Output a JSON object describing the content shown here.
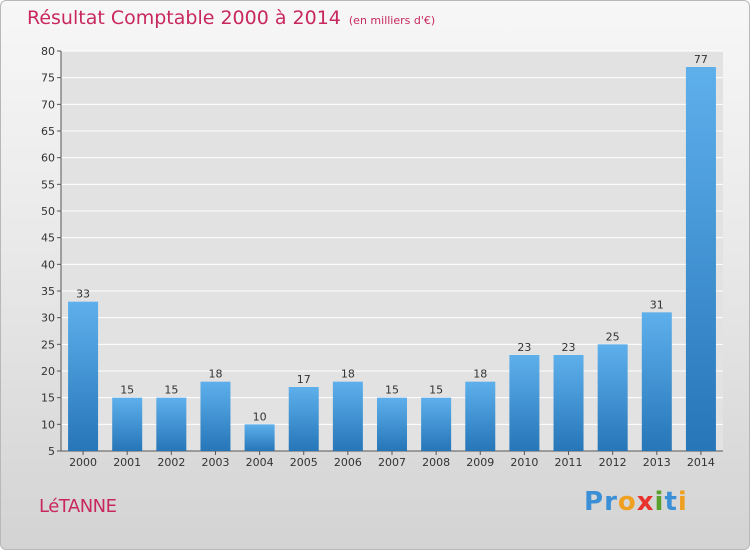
{
  "title": {
    "main": "Résultat Comptable 2000 à 2014",
    "sub": "(en milliers d'€)"
  },
  "place": "LéTANNE",
  "logo": {
    "text": "Proxiti",
    "letters": [
      {
        "ch": "P",
        "color": "#3a8fd6"
      },
      {
        "ch": "r",
        "color": "#3a8fd6"
      },
      {
        "ch": "o",
        "color": "#f0a020"
      },
      {
        "ch": "x",
        "color": "#e8322e"
      },
      {
        "ch": "i",
        "color": "#5aa02c"
      },
      {
        "ch": "t",
        "color": "#3a8fd6"
      },
      {
        "ch": "i",
        "color": "#f0a020"
      }
    ]
  },
  "colors": {
    "bar_light": "#5eb0ec",
    "bar_dark": "#2676b8",
    "grid": "#ffffff",
    "accent": "#c8285e"
  },
  "chart_data": {
    "type": "bar",
    "title": "Résultat Comptable 2000 à 2014 (en milliers d'€)",
    "xlabel": "",
    "ylabel": "",
    "categories": [
      "2000",
      "2001",
      "2002",
      "2003",
      "2004",
      "2005",
      "2006",
      "2007",
      "2008",
      "2009",
      "2010",
      "2011",
      "2012",
      "2013",
      "2014"
    ],
    "values": [
      33,
      15,
      15,
      18,
      10,
      17,
      18,
      15,
      15,
      18,
      23,
      23,
      25,
      31,
      77
    ],
    "ylim": [
      5,
      80
    ],
    "yticks": [
      5,
      10,
      15,
      20,
      25,
      30,
      35,
      40,
      45,
      50,
      55,
      60,
      65,
      70,
      75,
      80
    ],
    "grid": true
  }
}
